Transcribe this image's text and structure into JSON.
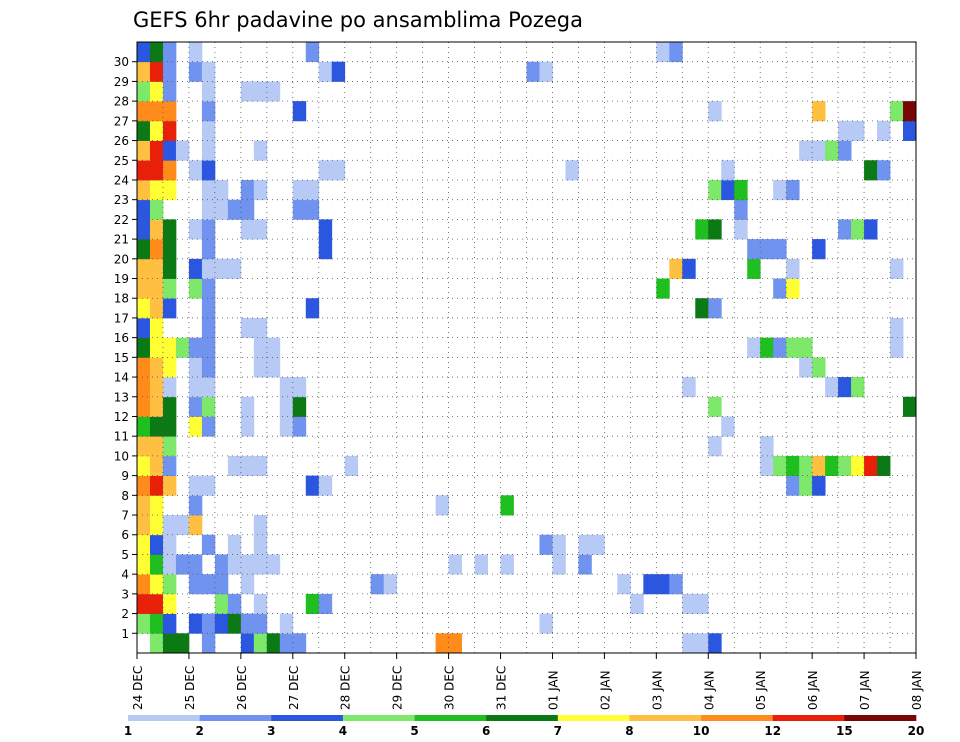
{
  "chart_data": {
    "type": "heatmap",
    "title": "GEFS 6hr padavine po ansamblima Pozega",
    "x_ticks": [
      "24 DEC",
      "25 DEC",
      "26 DEC",
      "27 DEC",
      "28 DEC",
      "29 DEC",
      "30 DEC",
      "31 DEC",
      "01 JAN",
      "02 JAN",
      "03 JAN",
      "04 JAN",
      "05 JAN",
      "06 JAN",
      "07 JAN",
      "08 JAN"
    ],
    "y_ticks": [
      "1",
      "2",
      "3",
      "4",
      "5",
      "6",
      "7",
      "8",
      "9",
      "10",
      "11",
      "12",
      "13",
      "14",
      "15",
      "16",
      "17",
      "18",
      "19",
      "20",
      "21",
      "22",
      "23",
      "24",
      "25",
      "26",
      "27",
      "28",
      "29",
      "30"
    ],
    "members": 31,
    "steps": 60,
    "grid": "dotted",
    "colorbar": {
      "labels": [
        "1",
        "2",
        "3",
        "4",
        "5",
        "6",
        "7",
        "8",
        "10",
        "12",
        "15",
        "20"
      ],
      "colors": [
        "#b7c9f5",
        "#6f93ef",
        "#2a56e0",
        "#7de86a",
        "#1fbf1f",
        "#0b7a14",
        "#ffff33",
        "#ffbf40",
        "#ff8c1a",
        "#e8200a",
        "#7a0505"
      ]
    },
    "cells": [
      [
        0,
        1,
        4
      ],
      [
        0,
        2,
        6
      ],
      [
        0,
        3,
        6
      ],
      [
        0,
        5,
        2
      ],
      [
        0,
        8,
        3
      ],
      [
        0,
        9,
        4
      ],
      [
        0,
        10,
        6
      ],
      [
        0,
        11,
        2
      ],
      [
        0,
        12,
        2
      ],
      [
        0,
        23,
        9
      ],
      [
        0,
        24,
        9
      ],
      [
        0,
        42,
        1
      ],
      [
        0,
        43,
        1
      ],
      [
        0,
        44,
        3
      ],
      [
        1,
        0,
        4
      ],
      [
        1,
        1,
        5
      ],
      [
        1,
        2,
        3
      ],
      [
        1,
        4,
        3
      ],
      [
        1,
        5,
        2
      ],
      [
        1,
        6,
        3
      ],
      [
        1,
        7,
        6
      ],
      [
        1,
        8,
        2
      ],
      [
        1,
        9,
        2
      ],
      [
        1,
        11,
        1
      ],
      [
        1,
        31,
        1
      ],
      [
        2,
        0,
        10
      ],
      [
        2,
        1,
        10
      ],
      [
        2,
        2,
        7
      ],
      [
        2,
        6,
        4
      ],
      [
        2,
        7,
        2
      ],
      [
        2,
        9,
        1
      ],
      [
        2,
        13,
        5
      ],
      [
        2,
        14,
        2
      ],
      [
        2,
        38,
        1
      ],
      [
        2,
        42,
        1
      ],
      [
        2,
        43,
        1
      ],
      [
        3,
        0,
        9
      ],
      [
        3,
        1,
        7
      ],
      [
        3,
        2,
        4
      ],
      [
        3,
        4,
        2
      ],
      [
        3,
        5,
        2
      ],
      [
        3,
        6,
        2
      ],
      [
        3,
        8,
        1
      ],
      [
        3,
        18,
        2
      ],
      [
        3,
        19,
        1
      ],
      [
        3,
        37,
        1
      ],
      [
        3,
        39,
        3
      ],
      [
        3,
        40,
        3
      ],
      [
        3,
        41,
        2
      ],
      [
        4,
        0,
        7
      ],
      [
        4,
        1,
        5
      ],
      [
        4,
        2,
        1
      ],
      [
        4,
        3,
        2
      ],
      [
        4,
        4,
        2
      ],
      [
        4,
        6,
        2
      ],
      [
        4,
        7,
        1
      ],
      [
        4,
        8,
        1
      ],
      [
        4,
        9,
        1
      ],
      [
        4,
        10,
        1
      ],
      [
        4,
        24,
        1
      ],
      [
        4,
        26,
        1
      ],
      [
        4,
        28,
        1
      ],
      [
        4,
        32,
        1
      ],
      [
        4,
        34,
        2
      ],
      [
        5,
        0,
        7
      ],
      [
        5,
        1,
        3
      ],
      [
        5,
        2,
        1
      ],
      [
        5,
        5,
        2
      ],
      [
        5,
        7,
        1
      ],
      [
        5,
        9,
        1
      ],
      [
        5,
        31,
        2
      ],
      [
        5,
        32,
        1
      ],
      [
        5,
        34,
        1
      ],
      [
        5,
        35,
        1
      ],
      [
        6,
        0,
        8
      ],
      [
        6,
        1,
        7
      ],
      [
        6,
        2,
        1
      ],
      [
        6,
        3,
        1
      ],
      [
        6,
        4,
        8
      ],
      [
        6,
        9,
        1
      ],
      [
        7,
        0,
        8
      ],
      [
        7,
        1,
        7
      ],
      [
        7,
        4,
        2
      ],
      [
        7,
        23,
        1
      ],
      [
        7,
        28,
        5
      ],
      [
        8,
        0,
        9
      ],
      [
        8,
        1,
        10
      ],
      [
        8,
        2,
        8
      ],
      [
        8,
        4,
        1
      ],
      [
        8,
        5,
        1
      ],
      [
        8,
        13,
        3
      ],
      [
        8,
        14,
        1
      ],
      [
        8,
        50,
        2
      ],
      [
        8,
        51,
        4
      ],
      [
        8,
        52,
        3
      ],
      [
        9,
        0,
        7
      ],
      [
        9,
        1,
        8
      ],
      [
        9,
        2,
        2
      ],
      [
        9,
        7,
        1
      ],
      [
        9,
        8,
        1
      ],
      [
        9,
        9,
        1
      ],
      [
        9,
        16,
        1
      ],
      [
        9,
        48,
        1
      ],
      [
        9,
        49,
        4
      ],
      [
        9,
        50,
        5
      ],
      [
        9,
        51,
        4
      ],
      [
        9,
        52,
        8
      ],
      [
        9,
        53,
        5
      ],
      [
        9,
        54,
        4
      ],
      [
        9,
        55,
        7
      ],
      [
        9,
        56,
        10
      ],
      [
        9,
        57,
        6
      ],
      [
        10,
        0,
        8
      ],
      [
        10,
        1,
        8
      ],
      [
        10,
        2,
        4
      ],
      [
        10,
        44,
        1
      ],
      [
        10,
        48,
        1
      ],
      [
        11,
        0,
        5
      ],
      [
        11,
        1,
        6
      ],
      [
        11,
        2,
        6
      ],
      [
        11,
        4,
        7
      ],
      [
        11,
        5,
        2
      ],
      [
        11,
        8,
        1
      ],
      [
        11,
        11,
        1
      ],
      [
        11,
        12,
        2
      ],
      [
        11,
        45,
        1
      ],
      [
        12,
        0,
        9
      ],
      [
        12,
        1,
        8
      ],
      [
        12,
        2,
        6
      ],
      [
        12,
        4,
        2
      ],
      [
        12,
        5,
        4
      ],
      [
        12,
        8,
        1
      ],
      [
        12,
        11,
        1
      ],
      [
        12,
        12,
        6
      ],
      [
        12,
        44,
        4
      ],
      [
        12,
        59,
        6
      ],
      [
        13,
        0,
        9
      ],
      [
        13,
        1,
        8
      ],
      [
        13,
        2,
        1
      ],
      [
        13,
        4,
        1
      ],
      [
        13,
        5,
        1
      ],
      [
        13,
        11,
        1
      ],
      [
        13,
        12,
        1
      ],
      [
        13,
        42,
        1
      ],
      [
        13,
        53,
        1
      ],
      [
        13,
        54,
        3
      ],
      [
        13,
        55,
        4
      ],
      [
        14,
        0,
        9
      ],
      [
        14,
        1,
        8
      ],
      [
        14,
        2,
        7
      ],
      [
        14,
        4,
        1
      ],
      [
        14,
        5,
        2
      ],
      [
        14,
        9,
        1
      ],
      [
        14,
        10,
        1
      ],
      [
        14,
        51,
        1
      ],
      [
        14,
        52,
        4
      ],
      [
        15,
        0,
        6
      ],
      [
        15,
        1,
        7
      ],
      [
        15,
        2,
        7
      ],
      [
        15,
        3,
        4
      ],
      [
        15,
        4,
        2
      ],
      [
        15,
        5,
        2
      ],
      [
        15,
        9,
        1
      ],
      [
        15,
        10,
        1
      ],
      [
        15,
        47,
        1
      ],
      [
        15,
        48,
        5
      ],
      [
        15,
        49,
        2
      ],
      [
        15,
        50,
        4
      ],
      [
        15,
        51,
        4
      ],
      [
        15,
        58,
        1
      ],
      [
        16,
        0,
        3
      ],
      [
        16,
        1,
        7
      ],
      [
        16,
        5,
        2
      ],
      [
        16,
        8,
        1
      ],
      [
        16,
        9,
        1
      ],
      [
        16,
        58,
        1
      ],
      [
        17,
        0,
        7
      ],
      [
        17,
        1,
        8
      ],
      [
        17,
        2,
        3
      ],
      [
        17,
        5,
        2
      ],
      [
        17,
        13,
        3
      ],
      [
        17,
        43,
        6
      ],
      [
        17,
        44,
        2
      ],
      [
        18,
        0,
        8
      ],
      [
        18,
        1,
        8
      ],
      [
        18,
        2,
        4
      ],
      [
        18,
        4,
        4
      ],
      [
        18,
        5,
        2
      ],
      [
        18,
        40,
        5
      ],
      [
        18,
        49,
        2
      ],
      [
        18,
        50,
        7
      ],
      [
        19,
        0,
        8
      ],
      [
        19,
        1,
        8
      ],
      [
        19,
        2,
        6
      ],
      [
        19,
        4,
        3
      ],
      [
        19,
        5,
        1
      ],
      [
        19,
        6,
        1
      ],
      [
        19,
        7,
        1
      ],
      [
        19,
        41,
        8
      ],
      [
        19,
        42,
        3
      ],
      [
        19,
        47,
        5
      ],
      [
        19,
        50,
        1
      ],
      [
        19,
        58,
        1
      ],
      [
        20,
        0,
        6
      ],
      [
        20,
        1,
        9
      ],
      [
        20,
        2,
        6
      ],
      [
        20,
        5,
        2
      ],
      [
        20,
        14,
        3
      ],
      [
        20,
        47,
        2
      ],
      [
        20,
        48,
        2
      ],
      [
        20,
        49,
        2
      ],
      [
        20,
        52,
        3
      ],
      [
        21,
        0,
        3
      ],
      [
        21,
        1,
        8
      ],
      [
        21,
        2,
        6
      ],
      [
        21,
        4,
        1
      ],
      [
        21,
        5,
        2
      ],
      [
        21,
        8,
        1
      ],
      [
        21,
        9,
        1
      ],
      [
        21,
        14,
        3
      ],
      [
        21,
        43,
        5
      ],
      [
        21,
        44,
        6
      ],
      [
        21,
        46,
        1
      ],
      [
        21,
        54,
        2
      ],
      [
        21,
        55,
        4
      ],
      [
        21,
        56,
        3
      ],
      [
        22,
        0,
        3
      ],
      [
        22,
        1,
        4
      ],
      [
        22,
        5,
        1
      ],
      [
        22,
        6,
        1
      ],
      [
        22,
        7,
        2
      ],
      [
        22,
        8,
        2
      ],
      [
        22,
        12,
        2
      ],
      [
        22,
        13,
        2
      ],
      [
        22,
        46,
        2
      ],
      [
        23,
        0,
        8
      ],
      [
        23,
        1,
        7
      ],
      [
        23,
        2,
        7
      ],
      [
        23,
        5,
        1
      ],
      [
        23,
        6,
        1
      ],
      [
        23,
        8,
        2
      ],
      [
        23,
        9,
        1
      ],
      [
        23,
        12,
        1
      ],
      [
        23,
        13,
        1
      ],
      [
        23,
        44,
        4
      ],
      [
        23,
        45,
        3
      ],
      [
        23,
        46,
        5
      ],
      [
        23,
        49,
        1
      ],
      [
        23,
        50,
        2
      ],
      [
        24,
        0,
        10
      ],
      [
        24,
        1,
        10
      ],
      [
        24,
        2,
        9
      ],
      [
        24,
        4,
        1
      ],
      [
        24,
        5,
        3
      ],
      [
        24,
        14,
        1
      ],
      [
        24,
        15,
        1
      ],
      [
        24,
        33,
        1
      ],
      [
        24,
        45,
        1
      ],
      [
        24,
        56,
        6
      ],
      [
        24,
        57,
        2
      ],
      [
        25,
        0,
        8
      ],
      [
        25,
        1,
        10
      ],
      [
        25,
        2,
        3
      ],
      [
        25,
        3,
        1
      ],
      [
        25,
        5,
        1
      ],
      [
        25,
        9,
        1
      ],
      [
        25,
        51,
        1
      ],
      [
        25,
        52,
        1
      ],
      [
        25,
        53,
        4
      ],
      [
        25,
        54,
        2
      ],
      [
        26,
        0,
        6
      ],
      [
        26,
        1,
        7
      ],
      [
        26,
        2,
        10
      ],
      [
        26,
        5,
        1
      ],
      [
        26,
        54,
        1
      ],
      [
        26,
        55,
        1
      ],
      [
        26,
        57,
        1
      ],
      [
        26,
        59,
        3
      ],
      [
        27,
        0,
        9
      ],
      [
        27,
        1,
        9
      ],
      [
        27,
        2,
        9
      ],
      [
        27,
        5,
        2
      ],
      [
        27,
        12,
        3
      ],
      [
        27,
        44,
        1
      ],
      [
        27,
        52,
        8
      ],
      [
        27,
        58,
        4
      ],
      [
        27,
        59,
        11
      ],
      [
        28,
        0,
        4
      ],
      [
        28,
        1,
        7
      ],
      [
        28,
        2,
        2
      ],
      [
        28,
        5,
        1
      ],
      [
        28,
        8,
        1
      ],
      [
        28,
        9,
        1
      ],
      [
        28,
        10,
        1
      ],
      [
        29,
        0,
        8
      ],
      [
        29,
        1,
        10
      ],
      [
        29,
        2,
        2
      ],
      [
        29,
        4,
        2
      ],
      [
        29,
        5,
        1
      ],
      [
        29,
        14,
        1
      ],
      [
        29,
        15,
        3
      ],
      [
        29,
        30,
        2
      ],
      [
        29,
        31,
        1
      ],
      [
        30,
        0,
        3
      ],
      [
        30,
        1,
        6
      ],
      [
        30,
        2,
        2
      ],
      [
        30,
        4,
        1
      ],
      [
        30,
        13,
        2
      ],
      [
        30,
        40,
        1
      ],
      [
        30,
        41,
        2
      ]
    ]
  }
}
